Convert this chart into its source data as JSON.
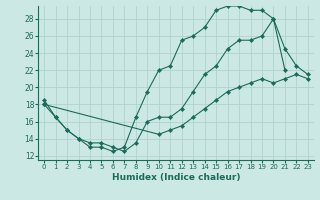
{
  "xlabel": "Humidex (Indice chaleur)",
  "bg_color": "#cce8e4",
  "grid_color": "#aacfcb",
  "line_color": "#1a6b5a",
  "xlim": [
    -0.5,
    23.5
  ],
  "ylim": [
    11.5,
    29.5
  ],
  "xticks": [
    0,
    1,
    2,
    3,
    4,
    5,
    6,
    7,
    8,
    9,
    10,
    11,
    12,
    13,
    14,
    15,
    16,
    17,
    18,
    19,
    20,
    21,
    22,
    23
  ],
  "yticks": [
    12,
    14,
    16,
    18,
    20,
    22,
    24,
    26,
    28
  ],
  "series": [
    {
      "x": [
        0,
        1,
        2,
        3,
        4,
        5,
        6,
        7,
        8,
        9,
        10,
        11,
        12,
        13,
        14,
        15,
        16,
        17,
        18,
        19,
        20,
        21
      ],
      "y": [
        18.5,
        16.5,
        15.0,
        14.0,
        13.0,
        13.0,
        12.5,
        13.0,
        16.5,
        19.5,
        22.0,
        22.5,
        25.5,
        26.0,
        27.0,
        29.0,
        29.5,
        29.5,
        29.0,
        29.0,
        28.0,
        22.0
      ]
    },
    {
      "x": [
        0,
        10,
        11,
        12,
        13,
        14,
        15,
        16,
        17,
        18,
        19,
        20,
        21,
        22,
        23
      ],
      "y": [
        18.0,
        14.5,
        15.0,
        15.5,
        16.5,
        17.5,
        18.5,
        19.5,
        20.0,
        20.5,
        21.0,
        20.5,
        21.0,
        21.5,
        21.0
      ]
    },
    {
      "x": [
        0,
        1,
        2,
        3,
        4,
        5,
        6,
        7,
        8,
        9,
        10,
        11,
        12,
        13,
        14,
        15,
        16,
        17,
        18,
        19,
        20,
        21,
        22,
        23
      ],
      "y": [
        18.0,
        16.5,
        15.0,
        14.0,
        13.5,
        13.5,
        13.0,
        12.5,
        13.5,
        16.0,
        16.5,
        16.5,
        17.5,
        19.5,
        21.5,
        22.5,
        24.5,
        25.5,
        25.5,
        26.0,
        28.0,
        24.5,
        22.5,
        21.5
      ]
    }
  ]
}
